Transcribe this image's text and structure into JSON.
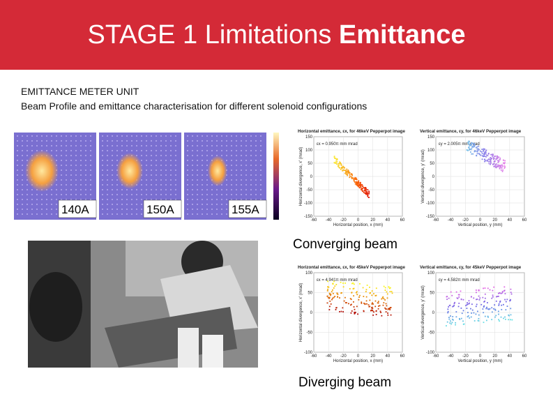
{
  "header": {
    "title": "STAGE 1 Limitations",
    "title_bold": "Emittance"
  },
  "body": {
    "heading": "EMITTANCE METER UNIT",
    "subheading": "Beam Profile and emittance characterisation for different solenoid configurations"
  },
  "profiles": {
    "labels": [
      "140A",
      "150A",
      "155A"
    ]
  },
  "plots": {
    "converging": {
      "caption": "Converging beam",
      "horizontal": {
        "title": "Horizontal emittance, εx, for 46keV Pepperpot image",
        "value": "εx = 0.950π mm mrad",
        "x_label": "Horizontal position, x (mm)",
        "y_label": "Horizontal divergence, x' (mrad)",
        "xticks": [
          -60,
          -40,
          -20,
          0,
          20,
          40,
          60
        ],
        "yticks": [
          150,
          100,
          50,
          0,
          -50,
          -100,
          -150
        ]
      },
      "vertical": {
        "title": "Vertical emittance, εy, for 46keV Pepperpot image",
        "value": "εy = 2.005π mm mrad",
        "x_label": "Vertical position, y (mm)",
        "y_label": "Vertical divergence, y' (mrad)",
        "xticks": [
          -60,
          -40,
          -20,
          0,
          20,
          40,
          60
        ],
        "yticks": [
          150,
          100,
          50,
          0,
          -50,
          -100,
          -150
        ]
      }
    },
    "diverging": {
      "caption": "Diverging beam",
      "horizontal": {
        "title": "Horizontal emittance, εx, for 45keV Pepperpot image",
        "value": "εx = 4.941π mm mrad",
        "x_label": "Horizontal position, x (mm)",
        "y_label": "Horizontal divergence, x' (mrad)",
        "xticks": [
          -60,
          -40,
          -20,
          0,
          20,
          40,
          60
        ],
        "yticks": [
          100,
          50,
          0,
          -50,
          -100
        ]
      },
      "vertical": {
        "title": "Vertical emittance, εy, for 45keV Pepperpot image",
        "value": "εy = 4.582π mm mrad",
        "x_label": "Vertical position, y (mm)",
        "y_label": "Vertical divergence, y' (mrad)",
        "xticks": [
          -60,
          -40,
          -20,
          0,
          20,
          40,
          60
        ],
        "yticks": [
          100,
          50,
          0,
          -50,
          -100
        ]
      }
    }
  }
}
